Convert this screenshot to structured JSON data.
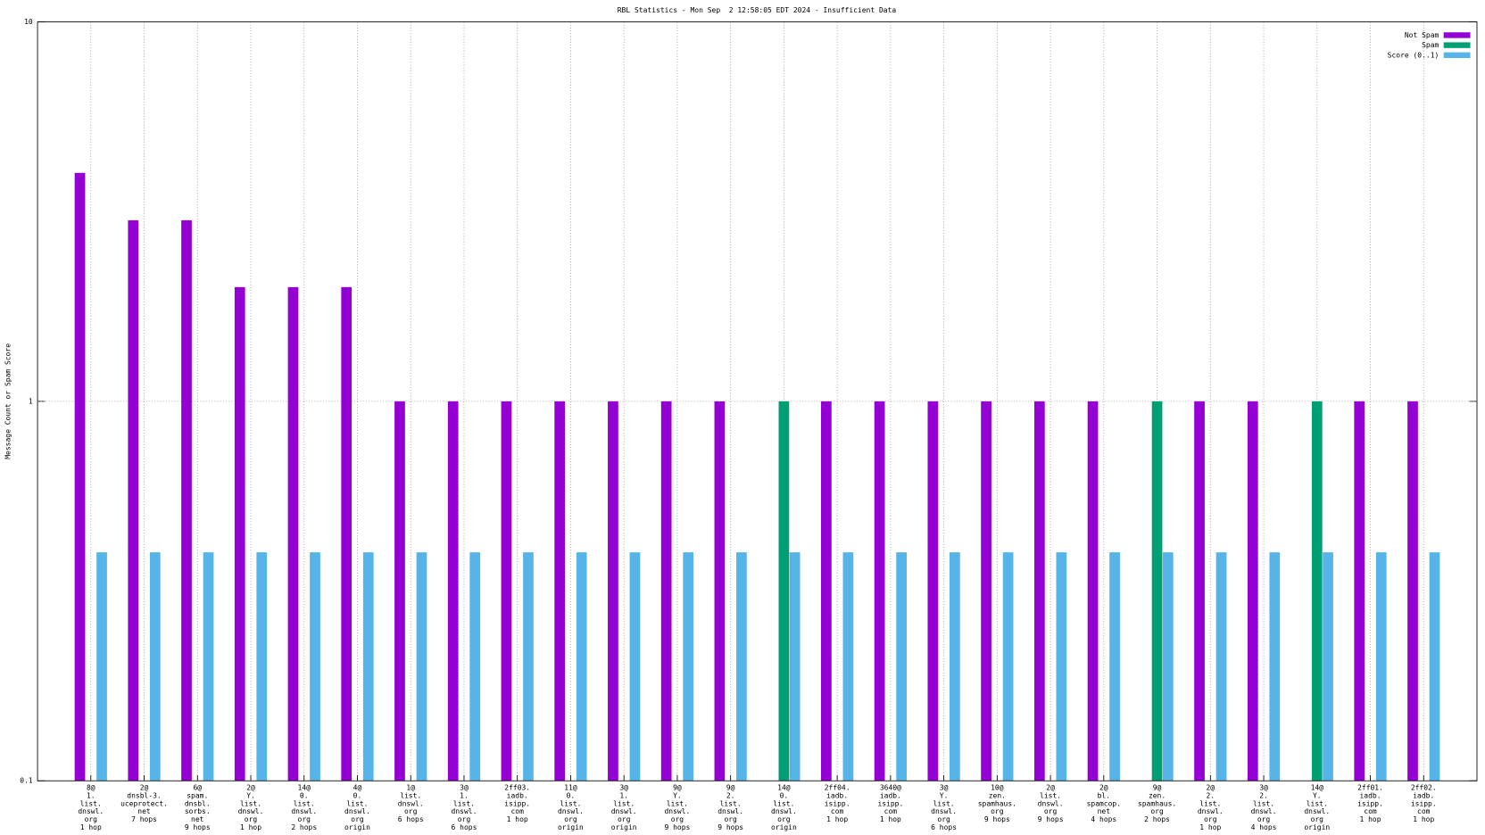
{
  "chart_data": {
    "type": "bar",
    "title": "RBL Statistics - Mon Sep  2 12:58:05 EDT 2024 - Insufficient Data",
    "y_label": "Message Count or Spam Score",
    "log_y": true,
    "grid": true,
    "legend": "top-right",
    "ylim": [
      0.1,
      10
    ],
    "yticks": [
      0.1,
      1,
      10
    ],
    "categories": [
      [
        "8@",
        "1.",
        "list.",
        "dnswl.",
        "org",
        "1 hop"
      ],
      [
        "2@",
        "dnsbl-3.",
        "uceprotect.",
        "net",
        "7 hops"
      ],
      [
        "6@",
        "spam.",
        "dnsbl.",
        "sorbs.",
        "net",
        "9 hops"
      ],
      [
        "2@",
        "Y.",
        "list.",
        "dnswl.",
        "org",
        "1 hop"
      ],
      [
        "14@",
        "0.",
        "list.",
        "dnswl.",
        "org",
        "2 hops"
      ],
      [
        "4@",
        "0.",
        "list.",
        "dnswl.",
        "org",
        "origin"
      ],
      [
        "1@",
        "list.",
        "dnswl.",
        "org",
        "6 hops"
      ],
      [
        "3@",
        "1.",
        "list.",
        "dnswl.",
        "org",
        "6 hops"
      ],
      [
        "2ff03.",
        "iadb.",
        "isipp.",
        "com",
        "1 hop"
      ],
      [
        "11@",
        "0.",
        "list.",
        "dnswl.",
        "org",
        "origin"
      ],
      [
        "3@",
        "1.",
        "list.",
        "dnswl.",
        "org",
        "origin"
      ],
      [
        "9@",
        "Y.",
        "list.",
        "dnswl.",
        "org",
        "9 hops"
      ],
      [
        "9@",
        "2.",
        "list.",
        "dnswl.",
        "org",
        "9 hops"
      ],
      [
        "14@",
        "0.",
        "list.",
        "dnswl.",
        "org",
        "origin"
      ],
      [
        "2ff04.",
        "iadb.",
        "isipp.",
        "com",
        "1 hop"
      ],
      [
        "3640@",
        "iadb.",
        "isipp.",
        "com",
        "1 hop"
      ],
      [
        "3@",
        "Y.",
        "list.",
        "dnswl.",
        "org",
        "6 hops"
      ],
      [
        "10@",
        "zen.",
        "spamhaus.",
        "org",
        "9 hops"
      ],
      [
        "2@",
        "list.",
        "dnswl.",
        "org",
        "9 hops"
      ],
      [
        "2@",
        "bl.",
        "spamcop.",
        "net",
        "4 hops"
      ],
      [
        "9@",
        "zen.",
        "spamhaus.",
        "org",
        "2 hops"
      ],
      [
        "2@",
        "2.",
        "list.",
        "dnswl.",
        "org",
        "1 hop"
      ],
      [
        "3@",
        "2.",
        "list.",
        "dnswl.",
        "org",
        "4 hops"
      ],
      [
        "14@",
        "Y.",
        "list.",
        "dnswl.",
        "org",
        "origin"
      ],
      [
        "2ff01.",
        "iadb.",
        "isipp.",
        "com",
        "1 hop"
      ],
      [
        "2ff02.",
        "iadb.",
        "isipp.",
        "com",
        "1 hop"
      ]
    ],
    "series": [
      {
        "name": "Not Spam",
        "color": "#9400d3",
        "values": [
          4,
          3,
          3,
          2,
          2,
          2,
          1,
          1,
          1,
          1,
          1,
          1,
          1,
          null,
          1,
          1,
          1,
          1,
          1,
          1,
          null,
          1,
          1,
          null,
          1,
          1
        ]
      },
      {
        "name": "Spam",
        "color": "#009e73",
        "values": [
          null,
          null,
          null,
          null,
          null,
          null,
          null,
          null,
          null,
          null,
          null,
          null,
          null,
          1,
          null,
          null,
          null,
          null,
          null,
          null,
          1,
          null,
          null,
          1,
          null,
          null
        ]
      },
      {
        "name": "Score (0..1)",
        "color": "#56b4e9",
        "values": [
          0.4,
          0.4,
          0.4,
          0.4,
          0.4,
          0.4,
          0.4,
          0.4,
          0.4,
          0.4,
          0.4,
          0.4,
          0.4,
          0.4,
          0.4,
          0.4,
          0.4,
          0.4,
          0.4,
          0.4,
          0.4,
          0.4,
          0.4,
          0.4,
          0.4,
          0.4
        ]
      }
    ]
  }
}
